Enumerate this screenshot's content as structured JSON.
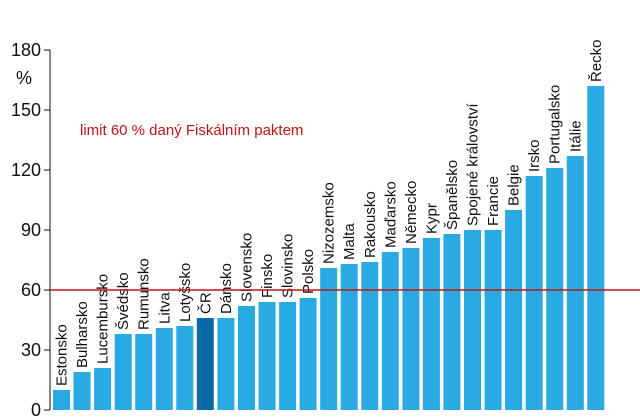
{
  "chart_data": {
    "type": "bar",
    "ylabel": "%",
    "ylim": [
      0,
      180
    ],
    "yticks": [
      0,
      30,
      60,
      90,
      120,
      150,
      180
    ],
    "grid": false,
    "categories": [
      "Estonsko",
      "Bulharsko",
      "Lucembursko",
      "Švédsko",
      "Rumunsko",
      "Litva",
      "Lotyšsko",
      "ČR",
      "Dánsko",
      "Slovensko",
      "Finsko",
      "Slovinsko",
      "Polsko",
      "Nizozemsko",
      "Malta",
      "Rakousko",
      "Maďarsko",
      "Německo",
      "Kypr",
      "Španělsko",
      "Spojené království",
      "Francie",
      "Belgie",
      "Irsko",
      "Portugalsko",
      "Itálie",
      "Řecko"
    ],
    "values": [
      10,
      19,
      21,
      38,
      38,
      41,
      42,
      46,
      46,
      52,
      54,
      54,
      56,
      71,
      73,
      74,
      79,
      81,
      86,
      88,
      90,
      90,
      100,
      117,
      121,
      127,
      162
    ],
    "colors": {
      "bar": "#2aaae2",
      "highlight": "#0a6aa8",
      "reference_line": "#c01414",
      "axis": "#111111"
    },
    "highlight_category": "ČR",
    "reference_line": {
      "value": 60,
      "label": "limit 60 % daný Fiskálním paktem"
    }
  }
}
